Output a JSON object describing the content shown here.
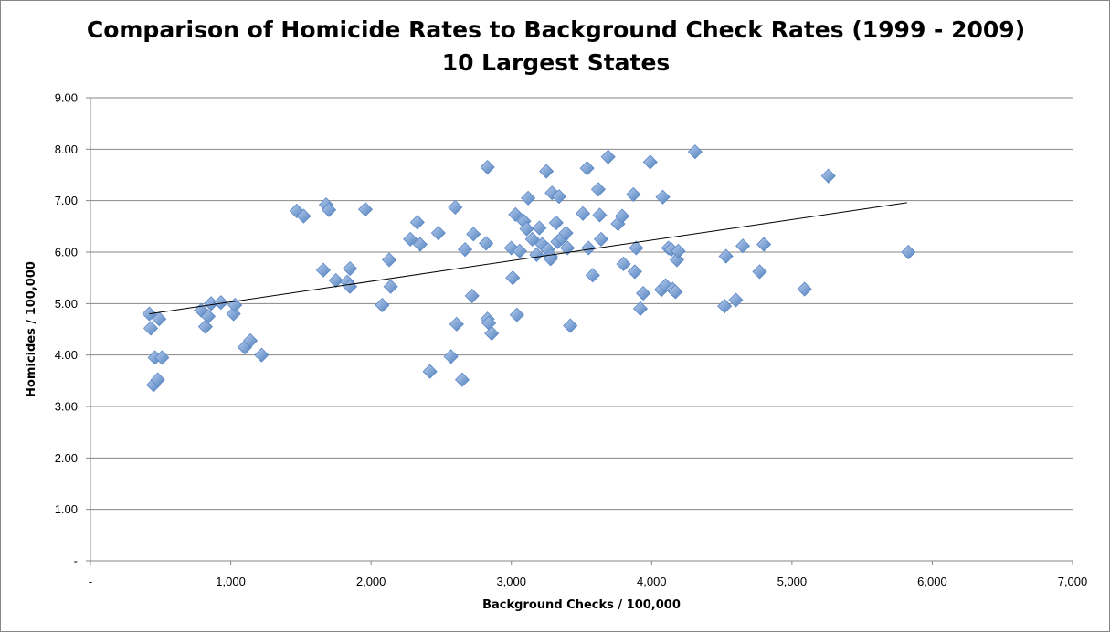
{
  "chart_data": {
    "type": "scatter",
    "title": "Comparison of Homicide Rates to Background Check Rates (1999 - 2009)",
    "subtitle": "10 Largest States",
    "xlabel": "Background Checks / 100,000",
    "ylabel": "Homicides / 100,000",
    "xlim": [
      0,
      7000
    ],
    "ylim": [
      0,
      9
    ],
    "x_ticks": [
      "-",
      "1,000",
      "2,000",
      "3,000",
      "4,000",
      "5,000",
      "6,000",
      "7,000"
    ],
    "y_ticks": [
      "-",
      "1.00",
      "2.00",
      "3.00",
      "4.00",
      "5.00",
      "6.00",
      "7.00",
      "8.00",
      "9.00"
    ],
    "grid": "horizontal",
    "marker_color": "#4F81BD",
    "marker_fill": "#7FA3D9",
    "trendline": {
      "type": "linear",
      "x": [
        420,
        5820
      ],
      "y": [
        4.8,
        6.96
      ]
    },
    "series": [
      {
        "points": [
          [
            420,
            4.8
          ],
          [
            430,
            4.52
          ],
          [
            450,
            3.42
          ],
          [
            460,
            3.95
          ],
          [
            480,
            3.52
          ],
          [
            490,
            4.7
          ],
          [
            510,
            3.95
          ],
          [
            790,
            4.87
          ],
          [
            820,
            4.55
          ],
          [
            840,
            4.75
          ],
          [
            860,
            5.0
          ],
          [
            930,
            5.02
          ],
          [
            1020,
            4.8
          ],
          [
            1030,
            4.97
          ],
          [
            1100,
            4.15
          ],
          [
            1140,
            4.28
          ],
          [
            1220,
            4.0
          ],
          [
            1470,
            6.8
          ],
          [
            1520,
            6.7
          ],
          [
            1660,
            5.65
          ],
          [
            1680,
            6.92
          ],
          [
            1700,
            6.82
          ],
          [
            1750,
            5.45
          ],
          [
            1830,
            5.42
          ],
          [
            1850,
            5.68
          ],
          [
            1850,
            5.33
          ],
          [
            1960,
            6.83
          ],
          [
            2080,
            4.97
          ],
          [
            2130,
            5.85
          ],
          [
            2140,
            5.33
          ],
          [
            2280,
            6.25
          ],
          [
            2330,
            6.58
          ],
          [
            2350,
            6.15
          ],
          [
            2420,
            3.68
          ],
          [
            2480,
            6.37
          ],
          [
            2570,
            3.97
          ],
          [
            2600,
            6.87
          ],
          [
            2610,
            4.6
          ],
          [
            2650,
            3.52
          ],
          [
            2670,
            6.05
          ],
          [
            2720,
            5.15
          ],
          [
            2730,
            6.35
          ],
          [
            2820,
            6.17
          ],
          [
            2830,
            7.65
          ],
          [
            2830,
            4.7
          ],
          [
            2840,
            4.62
          ],
          [
            2860,
            4.42
          ],
          [
            3000,
            6.08
          ],
          [
            3010,
            5.5
          ],
          [
            3030,
            6.73
          ],
          [
            3040,
            4.78
          ],
          [
            3060,
            6.02
          ],
          [
            3090,
            6.6
          ],
          [
            3110,
            6.45
          ],
          [
            3120,
            7.05
          ],
          [
            3150,
            6.25
          ],
          [
            3180,
            5.95
          ],
          [
            3200,
            6.47
          ],
          [
            3220,
            6.15
          ],
          [
            3250,
            7.57
          ],
          [
            3260,
            6.05
          ],
          [
            3280,
            5.92
          ],
          [
            3280,
            5.87
          ],
          [
            3290,
            7.15
          ],
          [
            3320,
            6.57
          ],
          [
            3330,
            6.2
          ],
          [
            3340,
            7.08
          ],
          [
            3360,
            6.27
          ],
          [
            3390,
            6.37
          ],
          [
            3400,
            6.08
          ],
          [
            3420,
            4.57
          ],
          [
            3510,
            6.75
          ],
          [
            3540,
            7.63
          ],
          [
            3550,
            6.08
          ],
          [
            3580,
            5.55
          ],
          [
            3620,
            7.22
          ],
          [
            3630,
            6.72
          ],
          [
            3640,
            6.25
          ],
          [
            3690,
            7.85
          ],
          [
            3760,
            6.55
          ],
          [
            3790,
            6.7
          ],
          [
            3800,
            5.77
          ],
          [
            3870,
            7.12
          ],
          [
            3880,
            5.62
          ],
          [
            3890,
            6.08
          ],
          [
            3920,
            4.9
          ],
          [
            3940,
            5.2
          ],
          [
            3990,
            7.75
          ],
          [
            4070,
            5.27
          ],
          [
            4080,
            7.07
          ],
          [
            4100,
            5.35
          ],
          [
            4120,
            6.08
          ],
          [
            4140,
            6.05
          ],
          [
            4150,
            5.28
          ],
          [
            4170,
            5.23
          ],
          [
            4180,
            5.85
          ],
          [
            4190,
            6.02
          ],
          [
            4310,
            7.95
          ],
          [
            4520,
            4.95
          ],
          [
            4530,
            5.92
          ],
          [
            4600,
            5.07
          ],
          [
            4650,
            6.12
          ],
          [
            4770,
            5.62
          ],
          [
            4800,
            6.15
          ],
          [
            5090,
            5.28
          ],
          [
            5260,
            7.48
          ],
          [
            5830,
            6.0
          ]
        ]
      }
    ]
  }
}
